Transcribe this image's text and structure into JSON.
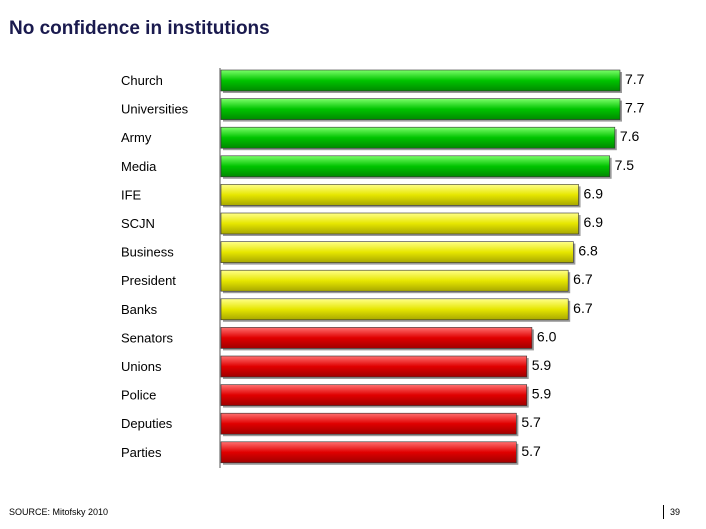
{
  "title": "No confidence in institutions",
  "footer": {
    "source": "SOURCE: Mitofsky 2010",
    "page": "39"
  },
  "colors": {
    "green": "#00c400",
    "yellow": "#e6e600",
    "red": "#e00000"
  },
  "chart_data": {
    "type": "bar",
    "orientation": "horizontal",
    "title": "No confidence in institutions",
    "categories": [
      "Church",
      "Universities",
      "Army",
      "Media",
      "IFE",
      "SCJN",
      "Business",
      "President",
      "Banks",
      "Senators",
      "Unions",
      "Police",
      "Deputies",
      "Parties"
    ],
    "values": [
      7.7,
      7.7,
      7.6,
      7.5,
      6.9,
      6.9,
      6.8,
      6.7,
      6.7,
      6.0,
      5.9,
      5.9,
      5.7,
      5.7
    ],
    "value_labels": [
      "7.7",
      "7.7",
      "7.6",
      "7.5",
      "6.9",
      "6.9",
      "6.8",
      "6.7",
      "6.7",
      "6.0",
      "5.9",
      "5.9",
      "5.7",
      "5.7"
    ],
    "bar_colors": [
      "green",
      "green",
      "green",
      "green",
      "yellow",
      "yellow",
      "yellow",
      "yellow",
      "yellow",
      "red",
      "red",
      "red",
      "red",
      "red"
    ],
    "xlim": [
      0,
      7.7
    ],
    "grid": false,
    "legend": "none"
  }
}
